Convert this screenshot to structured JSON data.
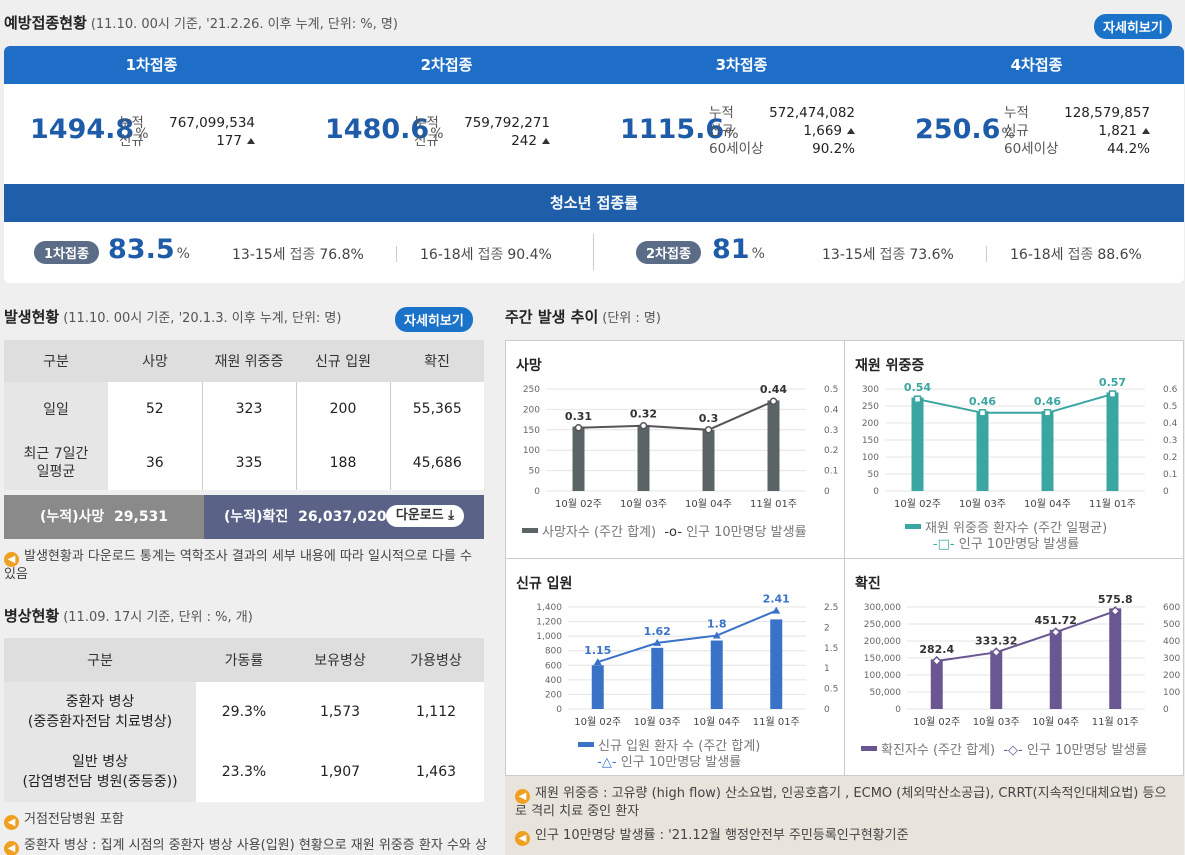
{
  "vaccination": {
    "title": "예방접종현황",
    "subtitle": "(11.10. 00시 기준, '21.2.26. 이후 누계, 단위: %, 명)",
    "detail_label": "자세히보기",
    "doses": [
      {
        "label": "1차접종",
        "rate": "1494.8",
        "unit": "%",
        "rows": [
          {
            "k": "누적",
            "v": "767,099,534"
          },
          {
            "k": "신규",
            "v": "177"
          }
        ]
      },
      {
        "label": "2차접종",
        "rate": "1480.6",
        "unit": "%",
        "rows": [
          {
            "k": "누적",
            "v": "759,792,271"
          },
          {
            "k": "신규",
            "v": "242"
          }
        ]
      },
      {
        "label": "3차접종",
        "rate": "1115.6",
        "unit": "%",
        "rows": [
          {
            "k": "누적",
            "v": "572,474,082"
          },
          {
            "k": "신규",
            "v": "1,669"
          },
          {
            "k": "60세이상",
            "v": "90.2%"
          }
        ]
      },
      {
        "label": "4차접종",
        "rate": "250.6",
        "unit": "%",
        "rows": [
          {
            "k": "누적",
            "v": "128,579,857"
          },
          {
            "k": "신규",
            "v": "1,821"
          },
          {
            "k": "60세이상",
            "v": "44.2%"
          }
        ]
      }
    ],
    "teen": {
      "title": "청소년 접종률",
      "first": {
        "label": "1차접종",
        "rate": "83.5",
        "unit": "%",
        "a_age": "13-15세",
        "a_lab": "접종",
        "a_val": "76.8%",
        "b_age": "16-18세",
        "b_lab": "접종",
        "b_val": "90.4%"
      },
      "second": {
        "label": "2차접종",
        "rate": "81",
        "unit": "%",
        "a_age": "13-15세",
        "a_lab": "접종",
        "a_val": "73.6%",
        "b_age": "16-18세",
        "b_lab": "접종",
        "b_val": "88.6%"
      }
    }
  },
  "occurrence": {
    "title": "발생현황",
    "subtitle": "(11.10. 00시 기준, '20.1.3. 이후 누계, 단위: 명)",
    "detail_label": "자세히보기",
    "headers": [
      "구분",
      "사망",
      "재원 위중증",
      "신규 입원",
      "확진"
    ],
    "rows": [
      {
        "label": "일일",
        "cells": [
          "52",
          "323",
          "200",
          "55,365"
        ]
      },
      {
        "label": "최근 7일간\n일평균",
        "cells": [
          "36",
          "335",
          "188",
          "45,686"
        ]
      }
    ],
    "cum_death_label": "(누적)사망",
    "cum_death": "29,531",
    "cum_conf_label": "(누적)확진",
    "cum_conf": "26,037,020",
    "download_label": "다운로드",
    "note": "발생현황과 다운로드 통계는 역학조사 결과의 세부 내용에 따라 일시적으로 다를 수 있음"
  },
  "beds": {
    "title": "병상현황",
    "subtitle": "(11.09. 17시 기준, 단위 : %, 개)",
    "headers": [
      "구분",
      "가동률",
      "보유병상",
      "가용병상"
    ],
    "rows": [
      {
        "label1": "중환자 병상",
        "label2": "(중증환자전담 치료병상)",
        "cells": [
          "29.3%",
          "1,573",
          "1,112"
        ]
      },
      {
        "label1": "일반 병상",
        "label2": "(감염병전담 병원(중등중))",
        "cells": [
          "23.3%",
          "1,907",
          "1,463"
        ]
      }
    ],
    "note1": "거점전담병원 포함",
    "note2": "중환자 병상 : 집계 시점의 중환자 병상 사용(입원) 현황으로 재원 위중증 환자 수와 상"
  },
  "weekly": {
    "title": "주간 발생 추이",
    "subtitle": "(단위 : 명)",
    "notes": [
      "재원 위중증 : 고유량 (high flow) 산소요법, 인공호흡기 , ECMO (체외막산소공급), CRRT(지속적인대체요법) 등으로 격리 치료 중인 환자",
      "인구 10만명당 발생률 : '21.12월 행정안전부 주민등록인구현황기준"
    ]
  },
  "chart_data": [
    {
      "type": "bar",
      "title": "사망",
      "categories": [
        "10월 02주",
        "10월 03주",
        "10월 04주",
        "11월 01주"
      ],
      "series": [
        {
          "name": "사망자수 (주간 합계)",
          "values": [
            158,
            162,
            150,
            222
          ],
          "color": "#5a6466"
        },
        {
          "name": "인구 10만명당 발생률",
          "values": [
            0.31,
            0.32,
            0.3,
            0.44
          ],
          "axis": "right"
        }
      ],
      "ylim": [
        0,
        250
      ],
      "yticks": [
        "0",
        "50",
        "100",
        "150",
        "200",
        "250"
      ],
      "y2lim": [
        0,
        0.5
      ],
      "y2ticks": [
        "0",
        "0.1",
        "0.2",
        "0.3",
        "0.4",
        "0.5"
      ]
    },
    {
      "type": "bar",
      "title": "재원 위중증",
      "categories": [
        "10월 02주",
        "10월 03주",
        "10월 04주",
        "11월 01주"
      ],
      "series": [
        {
          "name": "재원 위중증 환자수 (주간 일평균)",
          "values": [
            275,
            235,
            235,
            290
          ],
          "color": "#3aa6a2"
        },
        {
          "name": "인구 10만명당 발생률",
          "values": [
            0.54,
            0.46,
            0.46,
            0.57
          ],
          "axis": "right"
        }
      ],
      "ylim": [
        0,
        300
      ],
      "yticks": [
        "0",
        "50",
        "100",
        "150",
        "200",
        "250",
        "300"
      ],
      "y2lim": [
        0,
        0.6
      ],
      "y2ticks": [
        "0",
        "0.1",
        "0.2",
        "0.3",
        "0.4",
        "0.5",
        "0.6"
      ]
    },
    {
      "type": "bar",
      "title": "신규 입원",
      "categories": [
        "10월 02주",
        "10월 03주",
        "10월 04주",
        "11월 01주"
      ],
      "series": [
        {
          "name": "신규 입원 환자 수 (주간 합계)",
          "values": [
            600,
            840,
            940,
            1230
          ],
          "color": "#3a72c8"
        },
        {
          "name": "인구 10만명당 발생률",
          "values": [
            1.15,
            1.62,
            1.8,
            2.41
          ],
          "axis": "right"
        }
      ],
      "ylim": [
        0,
        1400
      ],
      "yticks": [
        "0",
        "200",
        "400",
        "600",
        "800",
        "1,000",
        "1,200",
        "1,400"
      ],
      "y2lim": [
        0,
        2.5
      ],
      "y2ticks": [
        "0",
        "0.5",
        "1",
        "1.5",
        "2",
        "2.5"
      ]
    },
    {
      "type": "bar",
      "title": "확진",
      "categories": [
        "10월 02주",
        "10월 03주",
        "10월 04주",
        "11월 01주"
      ],
      "series": [
        {
          "name": "확진자수 (주간 합계)",
          "values": [
            146000,
            172000,
            233000,
            296000
          ],
          "color": "#6a5690"
        },
        {
          "name": "인구 10만명당 발생률",
          "values": [
            282.4,
            333.32,
            451.72,
            575.8
          ],
          "axis": "right"
        }
      ],
      "ylim": [
        0,
        300000
      ],
      "yticks": [
        "0",
        "50,000",
        "100,000",
        "150,000",
        "200,000",
        "250,000",
        "300,000"
      ],
      "y2lim": [
        0,
        600
      ],
      "y2ticks": [
        "0",
        "100",
        "200",
        "300",
        "400",
        "500",
        "600"
      ]
    }
  ]
}
